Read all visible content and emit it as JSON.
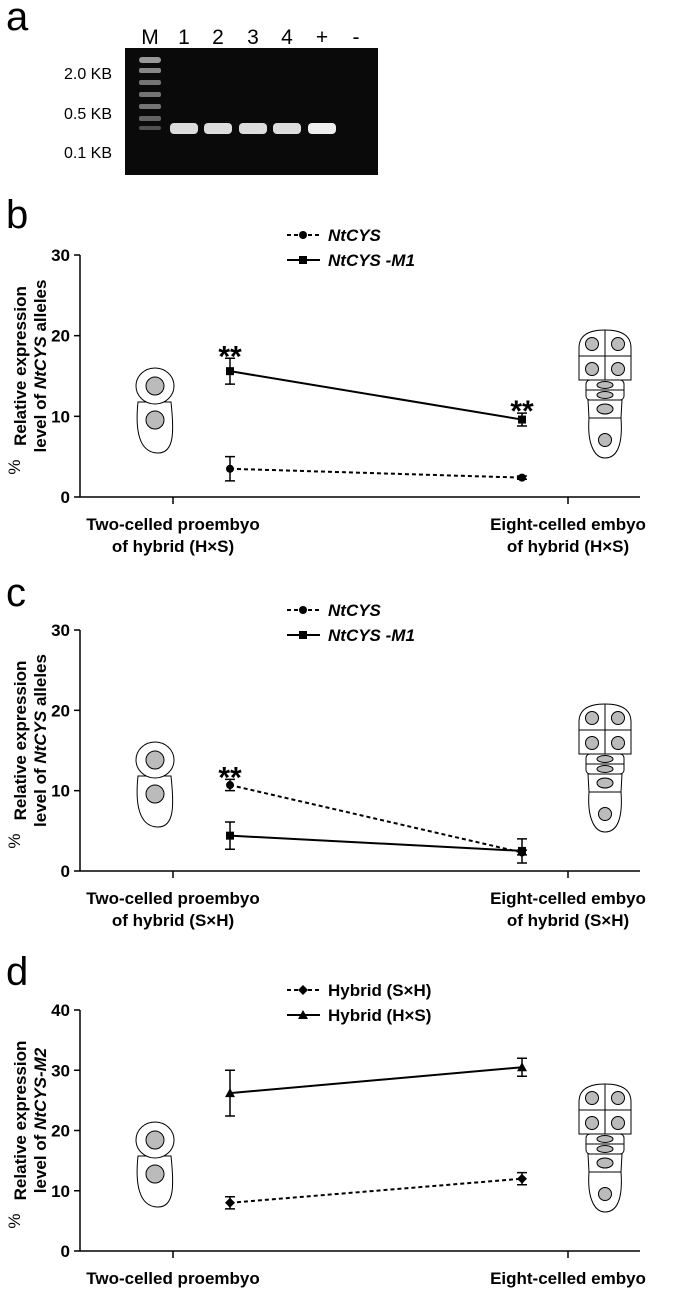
{
  "gel": {
    "letter": "a",
    "lanes": [
      "M",
      "1",
      "2",
      "3",
      "4",
      "+",
      "-"
    ],
    "sizes": [
      "2.0 KB",
      "0.5 KB",
      "0.1 KB"
    ]
  },
  "chart_data": [
    {
      "type": "line",
      "letter": "b",
      "ylabel_unit": "%",
      "ylabel_lines": [
        [
          {
            "text": "Relative expression"
          }
        ],
        [
          {
            "text": "level of "
          },
          {
            "text": "NtCYS",
            "italic": true
          },
          {
            "text": " alleles"
          }
        ]
      ],
      "categories": [
        "Two-celled proembyo",
        "Eight-celled embyo"
      ],
      "category_subtitles": [
        "of hybrid (H×S)",
        "of hybrid (H×S)"
      ],
      "ylim": [
        0,
        30
      ],
      "yticks": [
        0,
        10,
        20,
        30
      ],
      "italic_legend": true,
      "series": [
        {
          "name": "NtCYS",
          "color": "#000000",
          "dashed": true,
          "marker": "circle",
          "values": [
            3.5,
            2.4
          ],
          "errors": [
            1.5,
            0.2
          ]
        },
        {
          "name": "NtCYS -M1",
          "color": "#000000",
          "dashed": false,
          "marker": "square",
          "values": [
            15.6,
            9.6
          ],
          "errors": [
            1.6,
            0.8
          ]
        }
      ],
      "annotations": [
        {
          "text": "**",
          "series": 1,
          "index": 0
        },
        {
          "text": "**",
          "series": 1,
          "index": 1
        }
      ]
    },
    {
      "type": "line",
      "letter": "c",
      "ylabel_unit": "%",
      "ylabel_lines": [
        [
          {
            "text": "Relative expression"
          }
        ],
        [
          {
            "text": "level of "
          },
          {
            "text": "NtCYS",
            "italic": true
          },
          {
            "text": " alleles"
          }
        ]
      ],
      "categories": [
        "Two-celled proembyo",
        "Eight-celled embyo"
      ],
      "category_subtitles": [
        "of hybrid (S×H)",
        "of hybrid (S×H)"
      ],
      "ylim": [
        0,
        30
      ],
      "yticks": [
        0,
        10,
        20,
        30
      ],
      "italic_legend": true,
      "series": [
        {
          "name": "NtCYS",
          "color": "#000000",
          "dashed": true,
          "marker": "circle",
          "values": [
            10.7,
            2.3
          ],
          "errors": [
            0.7,
            0.3
          ]
        },
        {
          "name": "NtCYS -M1",
          "color": "#000000",
          "dashed": false,
          "marker": "square",
          "values": [
            4.4,
            2.5
          ],
          "errors": [
            1.7,
            1.5
          ]
        }
      ],
      "annotations": [
        {
          "text": "**",
          "series": 0,
          "index": 0
        }
      ]
    },
    {
      "type": "line",
      "letter": "d",
      "ylabel_unit": "%",
      "ylabel_lines": [
        [
          {
            "text": "Relative expression"
          }
        ],
        [
          {
            "text": "level of "
          },
          {
            "text": "NtCYS-M2",
            "italic": true
          }
        ]
      ],
      "categories": [
        "Two-celled proembyo",
        "Eight-celled embyo"
      ],
      "ylim": [
        0,
        40
      ],
      "yticks": [
        0,
        10,
        20,
        30,
        40
      ],
      "italic_legend": false,
      "series": [
        {
          "name": "Hybrid (S×H)",
          "color": "#000000",
          "dashed": true,
          "marker": "diamond",
          "values": [
            8,
            12
          ],
          "errors": [
            1,
            1
          ]
        },
        {
          "name": "Hybrid (H×S)",
          "color": "#000000",
          "dashed": false,
          "marker": "triangle",
          "values": [
            26.2,
            30.5
          ],
          "errors": [
            3.8,
            1.5
          ]
        }
      ],
      "annotations": []
    }
  ]
}
